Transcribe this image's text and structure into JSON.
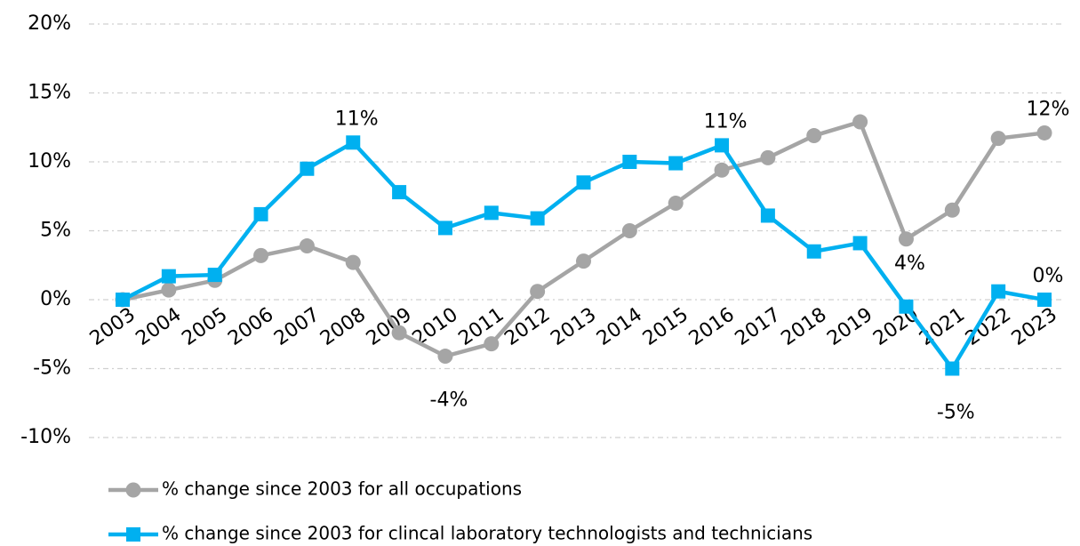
{
  "chart_data": {
    "type": "line",
    "categories": [
      "2003",
      "2004",
      "2005",
      "2006",
      "2007",
      "2008",
      "2009",
      "2010",
      "2011",
      "2012",
      "2013",
      "2014",
      "2015",
      "2016",
      "2017",
      "2018",
      "2019",
      "2020",
      "2021",
      "2022",
      "2023"
    ],
    "series": [
      {
        "name": "% change since 2003 for all occupations",
        "color": "#a5a5a5",
        "marker": "circle",
        "values": [
          0,
          0.7,
          1.4,
          3.2,
          3.9,
          2.7,
          -2.4,
          -4.1,
          -3.2,
          0.6,
          2.8,
          5.0,
          7.0,
          9.4,
          10.3,
          11.9,
          12.9,
          4.4,
          6.5,
          11.7,
          12.1
        ],
        "value_labels": [
          null,
          null,
          null,
          null,
          null,
          null,
          null,
          "-4%",
          null,
          null,
          null,
          null,
          null,
          null,
          null,
          null,
          null,
          "4%",
          null,
          null,
          "12%"
        ]
      },
      {
        "name": "% change since 2003 for clincal laboratory technologists and technicians",
        "color": "#00b0f0",
        "marker": "square",
        "values": [
          0,
          1.7,
          1.8,
          6.2,
          9.5,
          11.4,
          7.8,
          5.2,
          6.3,
          5.9,
          8.5,
          10.0,
          9.9,
          11.2,
          6.1,
          3.5,
          4.1,
          -0.5,
          -5.0,
          0.6,
          0
        ],
        "value_labels": [
          null,
          null,
          null,
          null,
          null,
          "11%",
          null,
          null,
          null,
          null,
          null,
          null,
          null,
          "11%",
          null,
          null,
          null,
          null,
          "-5%",
          null,
          "0%"
        ]
      }
    ],
    "ylim": [
      -10,
      20
    ],
    "yticks": [
      {
        "value": -10,
        "label": "-10%"
      },
      {
        "value": -5,
        "label": "-5%"
      },
      {
        "value": 0,
        "label": "0%"
      },
      {
        "value": 5,
        "label": "5%"
      },
      {
        "value": 10,
        "label": "10%"
      },
      {
        "value": 15,
        "label": "15%"
      },
      {
        "value": 20,
        "label": "20%"
      }
    ],
    "grid": true,
    "legend": "bottom"
  }
}
